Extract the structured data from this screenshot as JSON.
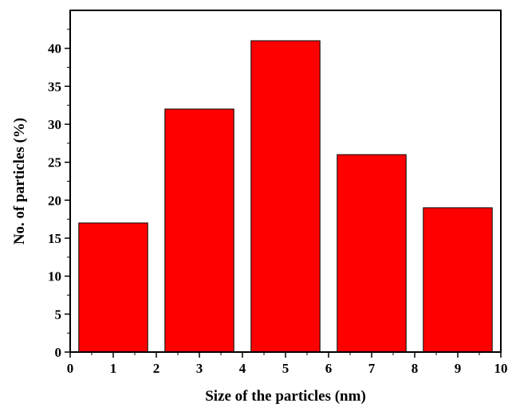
{
  "chart_data": {
    "type": "bar",
    "title": "",
    "xlabel": "Size of the particles (nm)",
    "ylabel": "No. of particles (%)",
    "categories": [
      "1",
      "3",
      "5",
      "7",
      "9"
    ],
    "x": [
      1,
      3,
      5,
      7,
      9
    ],
    "bin_width": 1.6,
    "values": [
      17,
      32,
      41,
      26,
      19
    ],
    "xlim": [
      0,
      10
    ],
    "ylim": [
      0,
      45
    ],
    "xticks": [
      0,
      1,
      2,
      3,
      4,
      5,
      6,
      7,
      8,
      9,
      10
    ],
    "yticks": [
      0,
      5,
      10,
      15,
      20,
      25,
      30,
      35,
      40
    ],
    "bar_color": "#ff0000",
    "bar_edge_color": "#000000",
    "grid": false,
    "legend": "none"
  }
}
